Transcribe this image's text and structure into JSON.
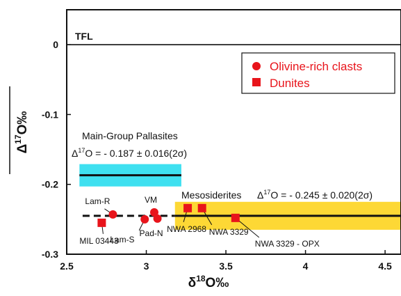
{
  "chart_data": {
    "type": "scatter",
    "xlabel": "δ18O‰",
    "ylabel": "Δ17O‰",
    "xlim": [
      2.5,
      4.6
    ],
    "ylim": [
      -0.3,
      0.05
    ],
    "x_ticks": [
      "2.5",
      "3",
      "3.5",
      "4",
      "4.5"
    ],
    "y_ticks": [
      "0",
      "-0.1",
      "-0.2",
      "-0.3"
    ],
    "grid": false,
    "legend_position": "top-right",
    "colors": {
      "points": "#e8141b",
      "pallasite_band": "#3fe0f0",
      "mesosiderite_band": "#fdd835",
      "lines": "#111111"
    },
    "series": [
      {
        "name": "Olivine-rich clasts",
        "marker": "circle",
        "points": [
          {
            "x": 2.79,
            "y": -0.243,
            "label": "Lam-R"
          },
          {
            "x": 2.99,
            "y": -0.25,
            "label": "Lam-S"
          },
          {
            "x": 3.05,
            "y": -0.24,
            "label": "VM"
          },
          {
            "x": 3.07,
            "y": -0.249,
            "label": "Pad-N"
          }
        ]
      },
      {
        "name": "Dunites",
        "marker": "square",
        "points": [
          {
            "x": 2.72,
            "y": -0.255,
            "label": "MIL 03443"
          },
          {
            "x": 3.26,
            "y": -0.234,
            "label": "NWA 2968"
          },
          {
            "x": 3.35,
            "y": -0.234,
            "label": "NWA 3329"
          },
          {
            "x": 3.56,
            "y": -0.248,
            "label": "NWA 3329 - OPX"
          }
        ]
      }
    ],
    "reference_lines": [
      {
        "label": "TFL",
        "y": 0,
        "x_range": [
          2.5,
          4.6
        ],
        "style": "solid"
      },
      {
        "label": "Main-Group Pallasites",
        "annotation": "Δ17O = - 0.187 ± 0.016(2σ)",
        "y": -0.187,
        "band": [
          -0.203,
          -0.171
        ],
        "x_range": [
          2.58,
          3.22
        ],
        "style": "solid"
      },
      {
        "label": "Mesosiderites",
        "annotation": "Δ17O = - 0.245 ± 0.020(2σ)",
        "y": -0.245,
        "band": [
          -0.265,
          -0.225
        ],
        "x_range": [
          3.18,
          4.6
        ],
        "style": "solid"
      },
      {
        "label": "",
        "y": -0.245,
        "x_range": [
          2.6,
          3.18
        ],
        "style": "dashed"
      }
    ]
  },
  "labels": {
    "tfl": "TFL",
    "pallasites_title": "Main-Group Pallasites",
    "pallasites_eq": "Δ17O = - 0.187 ± 0.016(2σ)",
    "mesosiderites_title": "Mesosiderites",
    "mesosiderites_eq": "Δ17O = - 0.245 ± 0.020(2σ)"
  }
}
